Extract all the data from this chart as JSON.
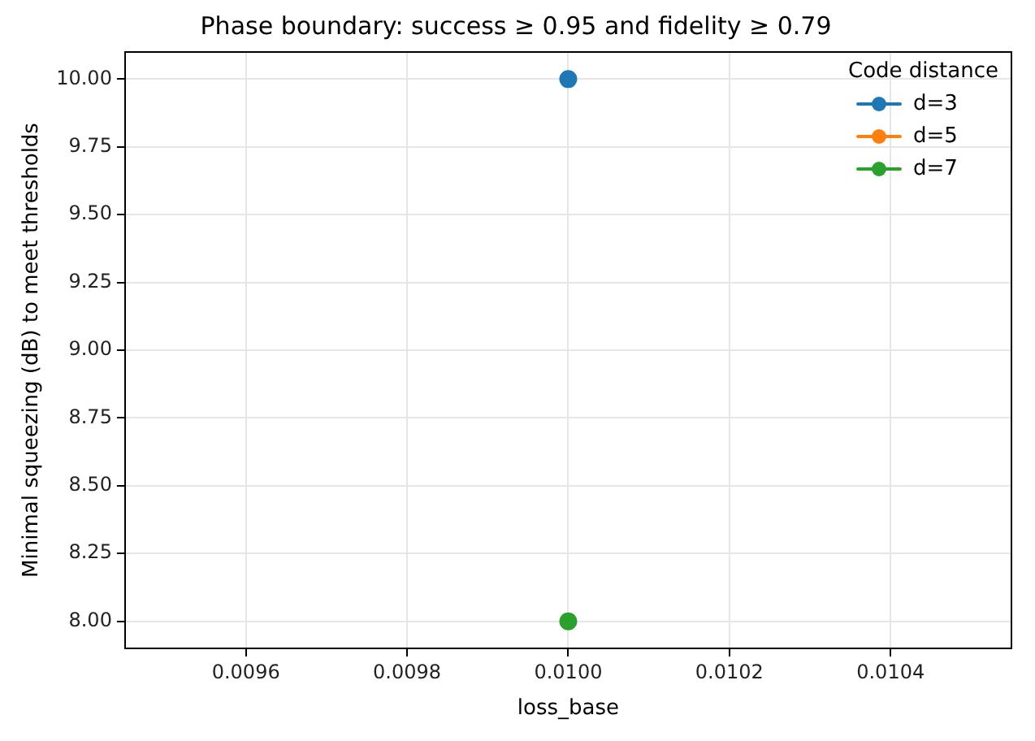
{
  "chart_data": {
    "type": "line",
    "title": "Phase boundary: success ≥ 0.95 and fidelity ≥ 0.79",
    "xlabel": "loss_base",
    "ylabel": "Minimal squeezing (dB) to meet thresholds",
    "legend_title": "Code distance",
    "x": [
      0.01
    ],
    "series": [
      {
        "name": "d=3",
        "color": "#1f77b4",
        "values": [
          10
        ]
      },
      {
        "name": "d=5",
        "color": "#ff7f0e",
        "values": [
          null
        ]
      },
      {
        "name": "d=7",
        "color": "#2ca02c",
        "values": [
          8
        ]
      }
    ],
    "xlim": [
      0.00945,
      0.01055
    ],
    "xticks": [
      0.0096,
      0.0098,
      {
        "value": 0.01,
        "label": "0.0100"
      },
      0.0102,
      0.0104
    ],
    "ylim": [
      7.9,
      10.1
    ],
    "yticks": [
      {
        "value": 8,
        "label": "8.00"
      },
      {
        "value": 8.25,
        "label": "8.25"
      },
      {
        "value": 8.5,
        "label": "8.50"
      },
      {
        "value": 8.75,
        "label": "8.75"
      },
      {
        "value": 9,
        "label": "9.00"
      },
      {
        "value": 9.25,
        "label": "9.25"
      },
      {
        "value": 9.5,
        "label": "9.50"
      },
      {
        "value": 9.75,
        "label": "9.75"
      },
      {
        "value": 10,
        "label": "10.00"
      }
    ],
    "grid": true,
    "legend": "top right",
    "marker": "circle"
  }
}
